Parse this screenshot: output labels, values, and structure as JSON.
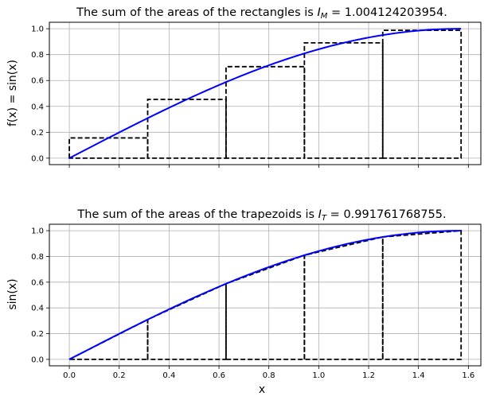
{
  "chart_data": [
    {
      "type": "line",
      "title_prefix": "The sum of the areas of the rectangles is ",
      "title_symbol": "I",
      "title_subscript": "M",
      "title_value": "1.004124203954.",
      "ylabel": "f(x) = sin(x)",
      "xlabel": "",
      "xlim": [
        -0.08,
        1.65
      ],
      "ylim": [
        -0.05,
        1.05
      ],
      "yticks": [
        0.0,
        0.2,
        0.4,
        0.6,
        0.8,
        1.0
      ],
      "ytick_labels": [
        "0.0",
        "0.2",
        "0.4",
        "0.6",
        "0.8",
        "1.0"
      ],
      "xticks": [
        0.0,
        0.2,
        0.4,
        0.6,
        0.8,
        1.0,
        1.2,
        1.4,
        1.6
      ],
      "xtick_labels": [],
      "grid": true,
      "curve": {
        "function": "sin(x)",
        "x_range": [
          0,
          1.5708
        ],
        "color": "#0000ff"
      },
      "rectangles": {
        "edges": [
          0.0,
          0.3142,
          0.6283,
          0.9425,
          1.2566,
          1.5708
        ],
        "heights": [
          0.1564,
          0.454,
          0.7071,
          0.891,
          0.9877
        ],
        "style": "dashed",
        "color": "#000000"
      }
    },
    {
      "type": "line",
      "title_prefix": "The sum of the areas of the trapezoids is ",
      "title_symbol": "I",
      "title_subscript": "T",
      "title_value": "0.991761768755.",
      "ylabel": "sin(x)",
      "xlabel": "x",
      "xlim": [
        -0.08,
        1.65
      ],
      "ylim": [
        -0.05,
        1.05
      ],
      "yticks": [
        0.0,
        0.2,
        0.4,
        0.6,
        0.8,
        1.0
      ],
      "ytick_labels": [
        "0.0",
        "0.2",
        "0.4",
        "0.6",
        "0.8",
        "1.0"
      ],
      "xticks": [
        0.0,
        0.2,
        0.4,
        0.6,
        0.8,
        1.0,
        1.2,
        1.4,
        1.6
      ],
      "xtick_labels": [
        "0.0",
        "0.2",
        "0.4",
        "0.6",
        "0.8",
        "1.0",
        "1.2",
        "1.4",
        "1.6"
      ],
      "grid": true,
      "curve": {
        "function": "sin(x)",
        "x_range": [
          0,
          1.5708
        ],
        "color": "#0000ff"
      },
      "trapezoids": {
        "nodes_x": [
          0.0,
          0.3142,
          0.6283,
          0.9425,
          1.2566,
          1.5708
        ],
        "nodes_y": [
          0.0,
          0.309,
          0.5878,
          0.809,
          0.9511,
          1.0
        ],
        "style": "dashed",
        "color": "#000000"
      }
    }
  ]
}
